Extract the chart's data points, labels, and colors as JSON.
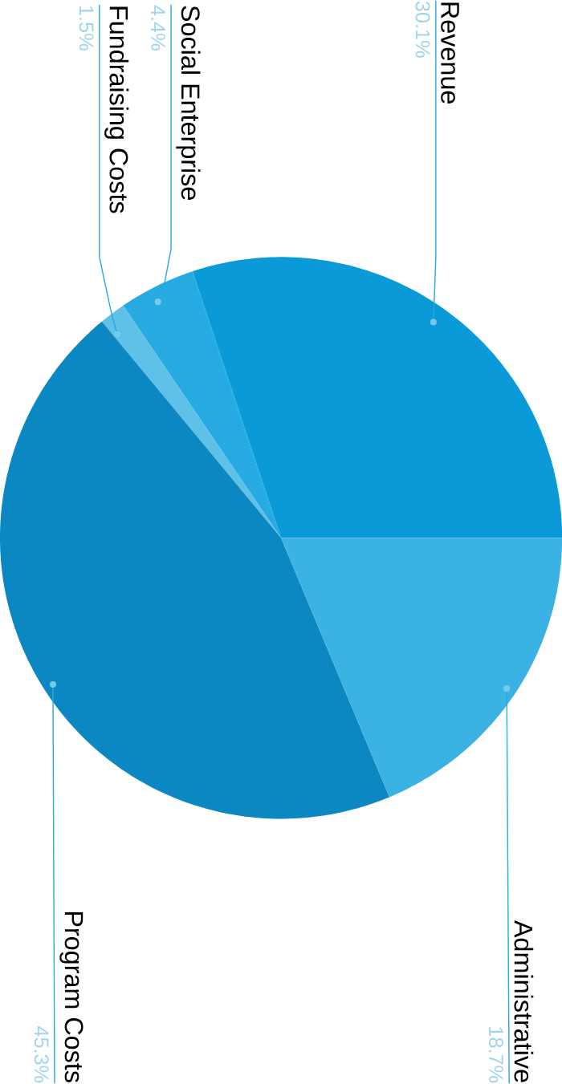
{
  "chart_data": {
    "type": "pie",
    "categories": [
      "Revenue",
      "Social Enterprise",
      "Fundraising Costs",
      "Program Costs",
      "Administrative"
    ],
    "values": [
      30.1,
      4.4,
      1.5,
      45.3,
      18.7
    ],
    "value_labels": [
      "30.1%",
      "4.4%",
      "1.5%",
      "45.3%",
      "18.7%"
    ],
    "colors": [
      "#0a9ad8",
      "#27aae1",
      "#5fc0e8",
      "#0b88c1",
      "#3bb2e4"
    ]
  }
}
